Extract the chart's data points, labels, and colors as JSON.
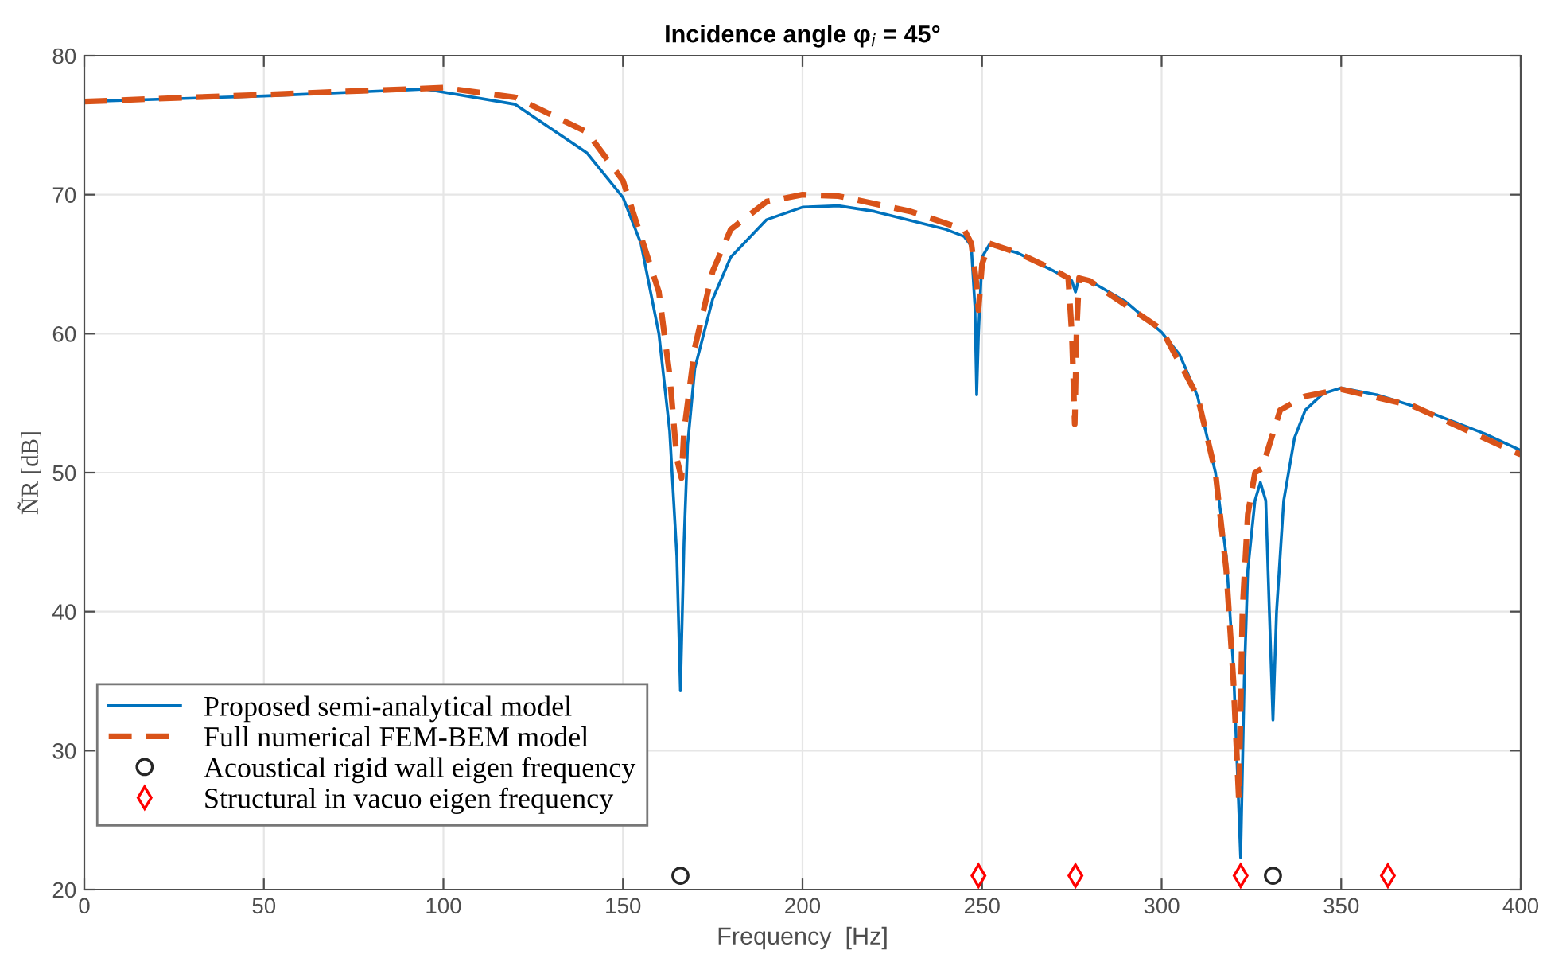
{
  "chart_data": {
    "type": "line",
    "title": "Incidence angle φ$_{i}$ = 45°",
    "xlabel": "Frequency  [Hz]",
    "ylabel": "ÑR [dB]",
    "xlim": [
      0,
      400
    ],
    "ylim": [
      20,
      80
    ],
    "xticks": [
      0,
      50,
      100,
      150,
      200,
      250,
      300,
      350,
      400
    ],
    "yticks": [
      20,
      30,
      40,
      50,
      60,
      70,
      80
    ],
    "grid": true,
    "legend": "bottom left",
    "series": [
      {
        "name": "Proposed semi-analytical model",
        "color": "#0072bd",
        "line_style": "solid",
        "marker": "none",
        "x": [
          0,
          50,
          95,
          120,
          140,
          150,
          155,
          160,
          163,
          165,
          166,
          167,
          168,
          170,
          175,
          180,
          190,
          200,
          210,
          220,
          240,
          245,
          247,
          248,
          248.5,
          249,
          250,
          252,
          260,
          270,
          275,
          276,
          277,
          280,
          290,
          300,
          305,
          310,
          315,
          318,
          320,
          322,
          323,
          324,
          326,
          327.5,
          329,
          330,
          331,
          332,
          334,
          337,
          340,
          345,
          350,
          360,
          370,
          380,
          390,
          400
        ],
        "values": [
          76.7,
          77.1,
          77.6,
          76.5,
          73,
          69.8,
          66.5,
          60,
          53,
          44,
          34.3,
          45,
          52,
          57.5,
          62.5,
          65.5,
          68.2,
          69.1,
          69.2,
          68.8,
          67.5,
          67,
          66.3,
          62,
          55.6,
          60,
          65.5,
          66.4,
          65.8,
          64.5,
          63.8,
          63,
          64,
          63.8,
          62.3,
          60.1,
          58.5,
          55.5,
          50,
          44,
          36,
          22.3,
          35,
          43,
          48,
          49.3,
          48,
          40,
          32.2,
          40,
          48,
          52.5,
          54.5,
          55.7,
          56.1,
          55.6,
          54.8,
          53.8,
          52.8,
          51.6
        ]
      },
      {
        "name": "Full numerical FEM-BEM model",
        "color": "#d95319",
        "line_style": "dashed",
        "marker": "none",
        "x": [
          0,
          50,
          100,
          120,
          140,
          150,
          160,
          163,
          165,
          166.3,
          167,
          170,
          175,
          180,
          190,
          200,
          210,
          230,
          245,
          247,
          248.5,
          249,
          250,
          252,
          260,
          270,
          274,
          275,
          275.8,
          276.3,
          277,
          280,
          300,
          310,
          315,
          318,
          320,
          321.5,
          322.5,
          324,
          326,
          328,
          330,
          333,
          340,
          350,
          370,
          400
        ],
        "values": [
          76.7,
          77.2,
          77.7,
          77,
          74.5,
          71,
          63,
          57,
          51,
          49.6,
          53,
          59,
          64.5,
          67.5,
          69.5,
          70,
          69.9,
          68.8,
          67.5,
          66.5,
          63.5,
          61.7,
          65,
          66.5,
          65.8,
          64.6,
          64,
          60,
          53.5,
          60,
          64,
          63.8,
          60.3,
          55.5,
          50,
          43,
          35,
          26.5,
          40,
          47,
          50,
          50.3,
          52,
          54.5,
          55.5,
          56,
          54.8,
          51.3
        ]
      },
      {
        "name": "Acoustical rigid wall eigen frequency",
        "type": "scatter",
        "color": "#262626",
        "marker": "circle",
        "x": [
          166,
          331
        ],
        "values": [
          21,
          21
        ]
      },
      {
        "name": "Structural in vacuo eigen frequency",
        "type": "scatter",
        "color": "#ff0000",
        "marker": "diamond",
        "x": [
          249,
          276,
          322,
          363
        ],
        "values": [
          21,
          21,
          21,
          21
        ]
      }
    ]
  }
}
